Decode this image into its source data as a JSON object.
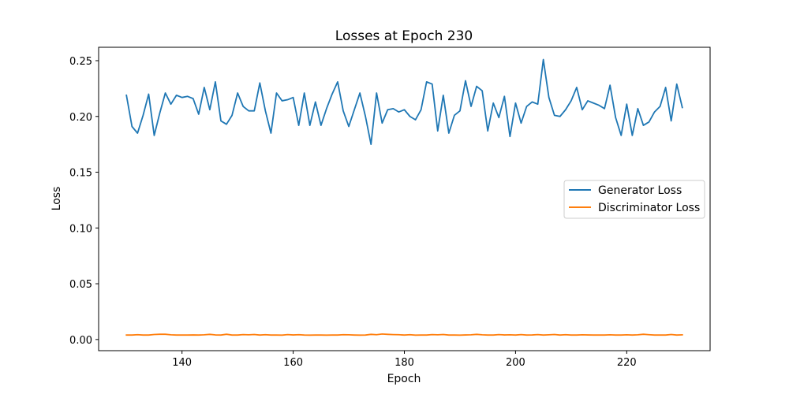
{
  "chart_data": {
    "type": "line",
    "title": "Losses at Epoch 230",
    "xlabel": "Epoch",
    "ylabel": "Loss",
    "xlim": [
      125,
      235
    ],
    "ylim": [
      -0.01,
      0.262
    ],
    "xticks": [
      140,
      160,
      180,
      200,
      220
    ],
    "yticks": [
      0.0,
      0.05,
      0.1,
      0.15,
      0.2,
      0.25
    ],
    "legend_placement": "center-right",
    "grid": false,
    "x": [
      130,
      131,
      132,
      133,
      134,
      135,
      136,
      137,
      138,
      139,
      140,
      141,
      142,
      143,
      144,
      145,
      146,
      147,
      148,
      149,
      150,
      151,
      152,
      153,
      154,
      155,
      156,
      157,
      158,
      159,
      160,
      161,
      162,
      163,
      164,
      165,
      166,
      167,
      168,
      169,
      170,
      171,
      172,
      173,
      174,
      175,
      176,
      177,
      178,
      179,
      180,
      181,
      182,
      183,
      184,
      185,
      186,
      187,
      188,
      189,
      190,
      191,
      192,
      193,
      194,
      195,
      196,
      197,
      198,
      199,
      200,
      201,
      202,
      203,
      204,
      205,
      206,
      207,
      208,
      209,
      210,
      211,
      212,
      213,
      214,
      215,
      216,
      217,
      218,
      219,
      220,
      221,
      222,
      223,
      224,
      225,
      226,
      227,
      228,
      229,
      230
    ],
    "series": [
      {
        "name": "Generator Loss",
        "color": "#1f77b4",
        "values": [
          0.219,
          0.191,
          0.185,
          0.201,
          0.22,
          0.183,
          0.203,
          0.221,
          0.211,
          0.219,
          0.217,
          0.218,
          0.216,
          0.202,
          0.226,
          0.206,
          0.231,
          0.196,
          0.193,
          0.201,
          0.221,
          0.209,
          0.205,
          0.205,
          0.23,
          0.205,
          0.185,
          0.221,
          0.214,
          0.215,
          0.217,
          0.192,
          0.221,
          0.192,
          0.213,
          0.192,
          0.207,
          0.22,
          0.231,
          0.205,
          0.191,
          0.206,
          0.221,
          0.2,
          0.175,
          0.221,
          0.194,
          0.206,
          0.207,
          0.204,
          0.206,
          0.2,
          0.197,
          0.206,
          0.231,
          0.229,
          0.187,
          0.219,
          0.185,
          0.201,
          0.205,
          0.232,
          0.209,
          0.227,
          0.223,
          0.187,
          0.212,
          0.199,
          0.218,
          0.182,
          0.212,
          0.194,
          0.209,
          0.213,
          0.211,
          0.251,
          0.217,
          0.201,
          0.2,
          0.206,
          0.214,
          0.226,
          0.206,
          0.214,
          0.212,
          0.21,
          0.207,
          0.228,
          0.199,
          0.183,
          0.211,
          0.183,
          0.207,
          0.192,
          0.195,
          0.204,
          0.209,
          0.226,
          0.196,
          0.229,
          0.208
        ]
      },
      {
        "name": "Discriminator Loss",
        "color": "#ff7f0e",
        "values": [
          0.004,
          0.004,
          0.0043,
          0.004,
          0.004,
          0.0045,
          0.0047,
          0.0047,
          0.0042,
          0.004,
          0.004,
          0.004,
          0.0041,
          0.004,
          0.0042,
          0.0046,
          0.0041,
          0.004,
          0.0047,
          0.004,
          0.004,
          0.0044,
          0.0042,
          0.0045,
          0.004,
          0.0043,
          0.004,
          0.004,
          0.0039,
          0.0044,
          0.0041,
          0.0043,
          0.004,
          0.0039,
          0.004,
          0.004,
          0.0039,
          0.004,
          0.004,
          0.0043,
          0.0042,
          0.004,
          0.0039,
          0.004,
          0.0046,
          0.0043,
          0.0049,
          0.0046,
          0.0044,
          0.0043,
          0.004,
          0.0043,
          0.0039,
          0.004,
          0.004,
          0.0044,
          0.0042,
          0.0045,
          0.004,
          0.004,
          0.0039,
          0.0041,
          0.0042,
          0.0046,
          0.0042,
          0.004,
          0.004,
          0.0044,
          0.0041,
          0.0042,
          0.004,
          0.0044,
          0.004,
          0.0041,
          0.0044,
          0.004,
          0.0042,
          0.0045,
          0.004,
          0.0043,
          0.004,
          0.004,
          0.0042,
          0.0041,
          0.004,
          0.004,
          0.004,
          0.0042,
          0.004,
          0.004,
          0.0042,
          0.004,
          0.0042,
          0.0047,
          0.0043,
          0.004,
          0.004,
          0.004,
          0.0045,
          0.004,
          0.0042
        ]
      }
    ]
  }
}
